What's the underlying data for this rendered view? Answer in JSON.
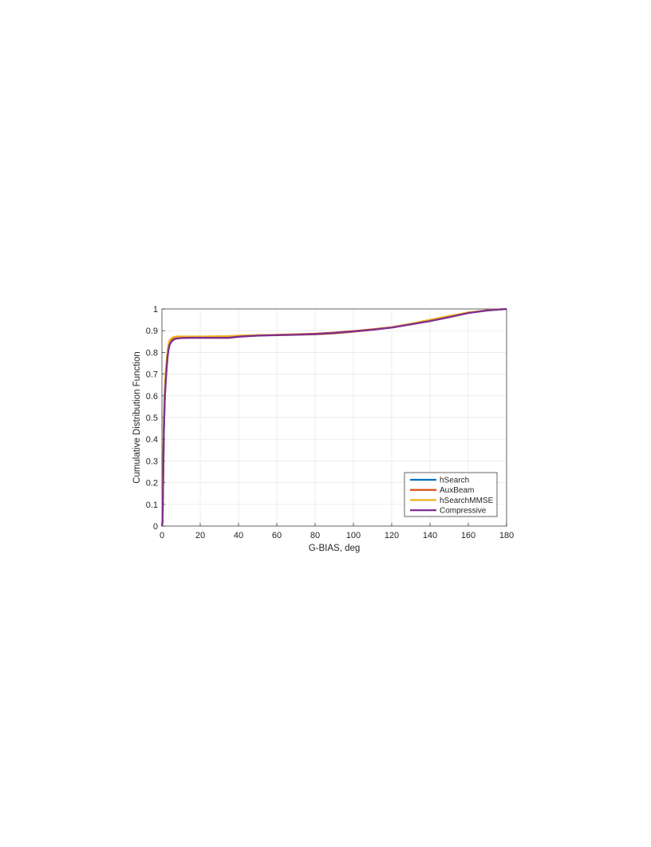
{
  "chart_data": {
    "type": "line",
    "title": "",
    "xlabel": "G-BIAS, deg",
    "ylabel": "Cumulative Distribution Function",
    "xlim": [
      0,
      180
    ],
    "ylim": [
      0,
      1
    ],
    "xticks": [
      0,
      20,
      40,
      60,
      80,
      100,
      120,
      140,
      160,
      180
    ],
    "yticks": [
      0,
      0.1,
      0.2,
      0.3,
      0.4,
      0.5,
      0.6,
      0.7,
      0.8,
      0.9,
      1
    ],
    "xtick_labels": [
      "0",
      "20",
      "40",
      "60",
      "80",
      "100",
      "120",
      "140",
      "160",
      "180"
    ],
    "ytick_labels": [
      "0",
      "0.1",
      "0.2",
      "0.3",
      "0.4",
      "0.5",
      "0.6",
      "0.7",
      "0.8",
      "0.9",
      "1"
    ],
    "grid": true,
    "legend_position": "bottom-right",
    "series": [
      {
        "name": "hSearch",
        "color": "#0072BD",
        "x": [
          0,
          0.3,
          0.6,
          1.0,
          1.5,
          2.0,
          2.5,
          3.0,
          3.5,
          4.0,
          5.0,
          6.0,
          7.0,
          8.0,
          10,
          15,
          20,
          30,
          35,
          40,
          50,
          60,
          70,
          80,
          90,
          100,
          110,
          120,
          130,
          140,
          150,
          160,
          170,
          180
        ],
        "y": [
          0,
          0.02,
          0.2,
          0.45,
          0.6,
          0.68,
          0.74,
          0.79,
          0.82,
          0.84,
          0.855,
          0.862,
          0.865,
          0.866,
          0.867,
          0.868,
          0.868,
          0.868,
          0.868,
          0.873,
          0.878,
          0.88,
          0.882,
          0.885,
          0.89,
          0.897,
          0.905,
          0.915,
          0.93,
          0.945,
          0.963,
          0.982,
          0.993,
          1.0
        ]
      },
      {
        "name": "AuxBeam",
        "color": "#D95319",
        "x": [
          0,
          0.3,
          0.6,
          1.0,
          1.5,
          2.0,
          2.5,
          3.0,
          3.5,
          4.0,
          5.0,
          6.0,
          7.0,
          8.0,
          10,
          15,
          20,
          30,
          35,
          40,
          50,
          60,
          70,
          80,
          90,
          100,
          110,
          120,
          130,
          140,
          150,
          160,
          170,
          180
        ],
        "y": [
          0,
          0.02,
          0.21,
          0.46,
          0.61,
          0.69,
          0.75,
          0.795,
          0.825,
          0.845,
          0.857,
          0.863,
          0.866,
          0.867,
          0.868,
          0.869,
          0.869,
          0.869,
          0.869,
          0.874,
          0.879,
          0.881,
          0.883,
          0.886,
          0.891,
          0.898,
          0.906,
          0.916,
          0.931,
          0.946,
          0.964,
          0.983,
          0.994,
          1.0
        ]
      },
      {
        "name": "hSearchMMSE",
        "color": "#EDB120",
        "x": [
          0,
          0.3,
          0.6,
          1.0,
          1.5,
          2.0,
          2.5,
          3.0,
          3.5,
          4.0,
          5.0,
          6.0,
          7.0,
          8.0,
          10,
          15,
          20,
          30,
          35,
          40,
          50,
          60,
          70,
          80,
          90,
          100,
          110,
          120,
          130,
          140,
          150,
          160,
          170,
          180
        ],
        "y": [
          0,
          0.03,
          0.24,
          0.5,
          0.64,
          0.72,
          0.77,
          0.81,
          0.84,
          0.855,
          0.865,
          0.87,
          0.872,
          0.873,
          0.873,
          0.873,
          0.873,
          0.874,
          0.875,
          0.877,
          0.879,
          0.88,
          0.881,
          0.883,
          0.887,
          0.895,
          0.904,
          0.915,
          0.932,
          0.95,
          0.968,
          0.984,
          0.994,
          1.0
        ]
      },
      {
        "name": "Compressive",
        "color": "#7E2F8E",
        "x": [
          0,
          0.3,
          0.6,
          1.0,
          1.5,
          2.0,
          2.5,
          3.0,
          3.5,
          4.0,
          5.0,
          6.0,
          7.0,
          8.0,
          10,
          15,
          20,
          30,
          35,
          40,
          50,
          60,
          70,
          80,
          90,
          100,
          110,
          120,
          130,
          140,
          150,
          160,
          170,
          180
        ],
        "y": [
          0,
          0.02,
          0.2,
          0.44,
          0.59,
          0.67,
          0.73,
          0.785,
          0.815,
          0.835,
          0.85,
          0.858,
          0.862,
          0.864,
          0.866,
          0.867,
          0.867,
          0.867,
          0.867,
          0.872,
          0.877,
          0.879,
          0.881,
          0.884,
          0.889,
          0.896,
          0.904,
          0.914,
          0.929,
          0.944,
          0.962,
          0.981,
          0.993,
          1.0
        ]
      }
    ]
  }
}
